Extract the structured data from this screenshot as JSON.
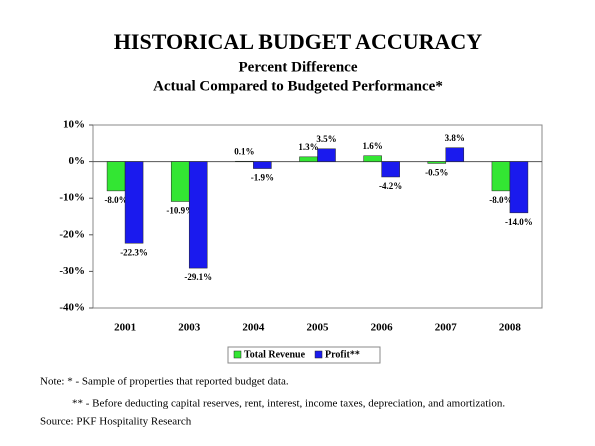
{
  "chart_data": {
    "type": "bar",
    "title": "HISTORICAL BUDGET ACCURACY",
    "subtitle": [
      "Percent Difference",
      "Actual Compared to Budgeted Performance*"
    ],
    "categories": [
      "2001",
      "2003",
      "2004",
      "2005",
      "2006",
      "2007",
      "2008"
    ],
    "series": [
      {
        "name": "Total Revenue",
        "color": "#33e633",
        "values": [
          -8.0,
          -10.9,
          0.1,
          1.3,
          1.6,
          -0.5,
          -8.0
        ],
        "value_labels": [
          "-8.0%",
          "-10.9%",
          "0.1%",
          "1.3%",
          "1.6%",
          "-0.5%",
          "-8.0%"
        ]
      },
      {
        "name": "Profit**",
        "color": "#1a1aee",
        "values": [
          -22.3,
          -29.1,
          -1.9,
          3.5,
          -4.2,
          3.8,
          -14.0
        ],
        "value_labels": [
          "-22.3%",
          "-29.1%",
          "-1.9%",
          "3.5%",
          "-4.2%",
          "3.8%",
          "-14.0%"
        ]
      }
    ],
    "ylim": [
      -40,
      10
    ],
    "yticks": [
      {
        "value": 10,
        "label": "10%"
      },
      {
        "value": 0,
        "label": "0%"
      },
      {
        "value": -10,
        "label": "-10%"
      },
      {
        "value": -20,
        "label": "-20%"
      },
      {
        "value": -30,
        "label": "-30%"
      },
      {
        "value": -40,
        "label": "-40%"
      }
    ],
    "legend": "bottom",
    "notes": [
      "Note: * - Sample of properties that reported budget data.",
      "** - Before deducting capital reserves, rent, interest, income taxes, depreciation, and amortization.",
      "Source: PKF Hospitality Research"
    ]
  }
}
